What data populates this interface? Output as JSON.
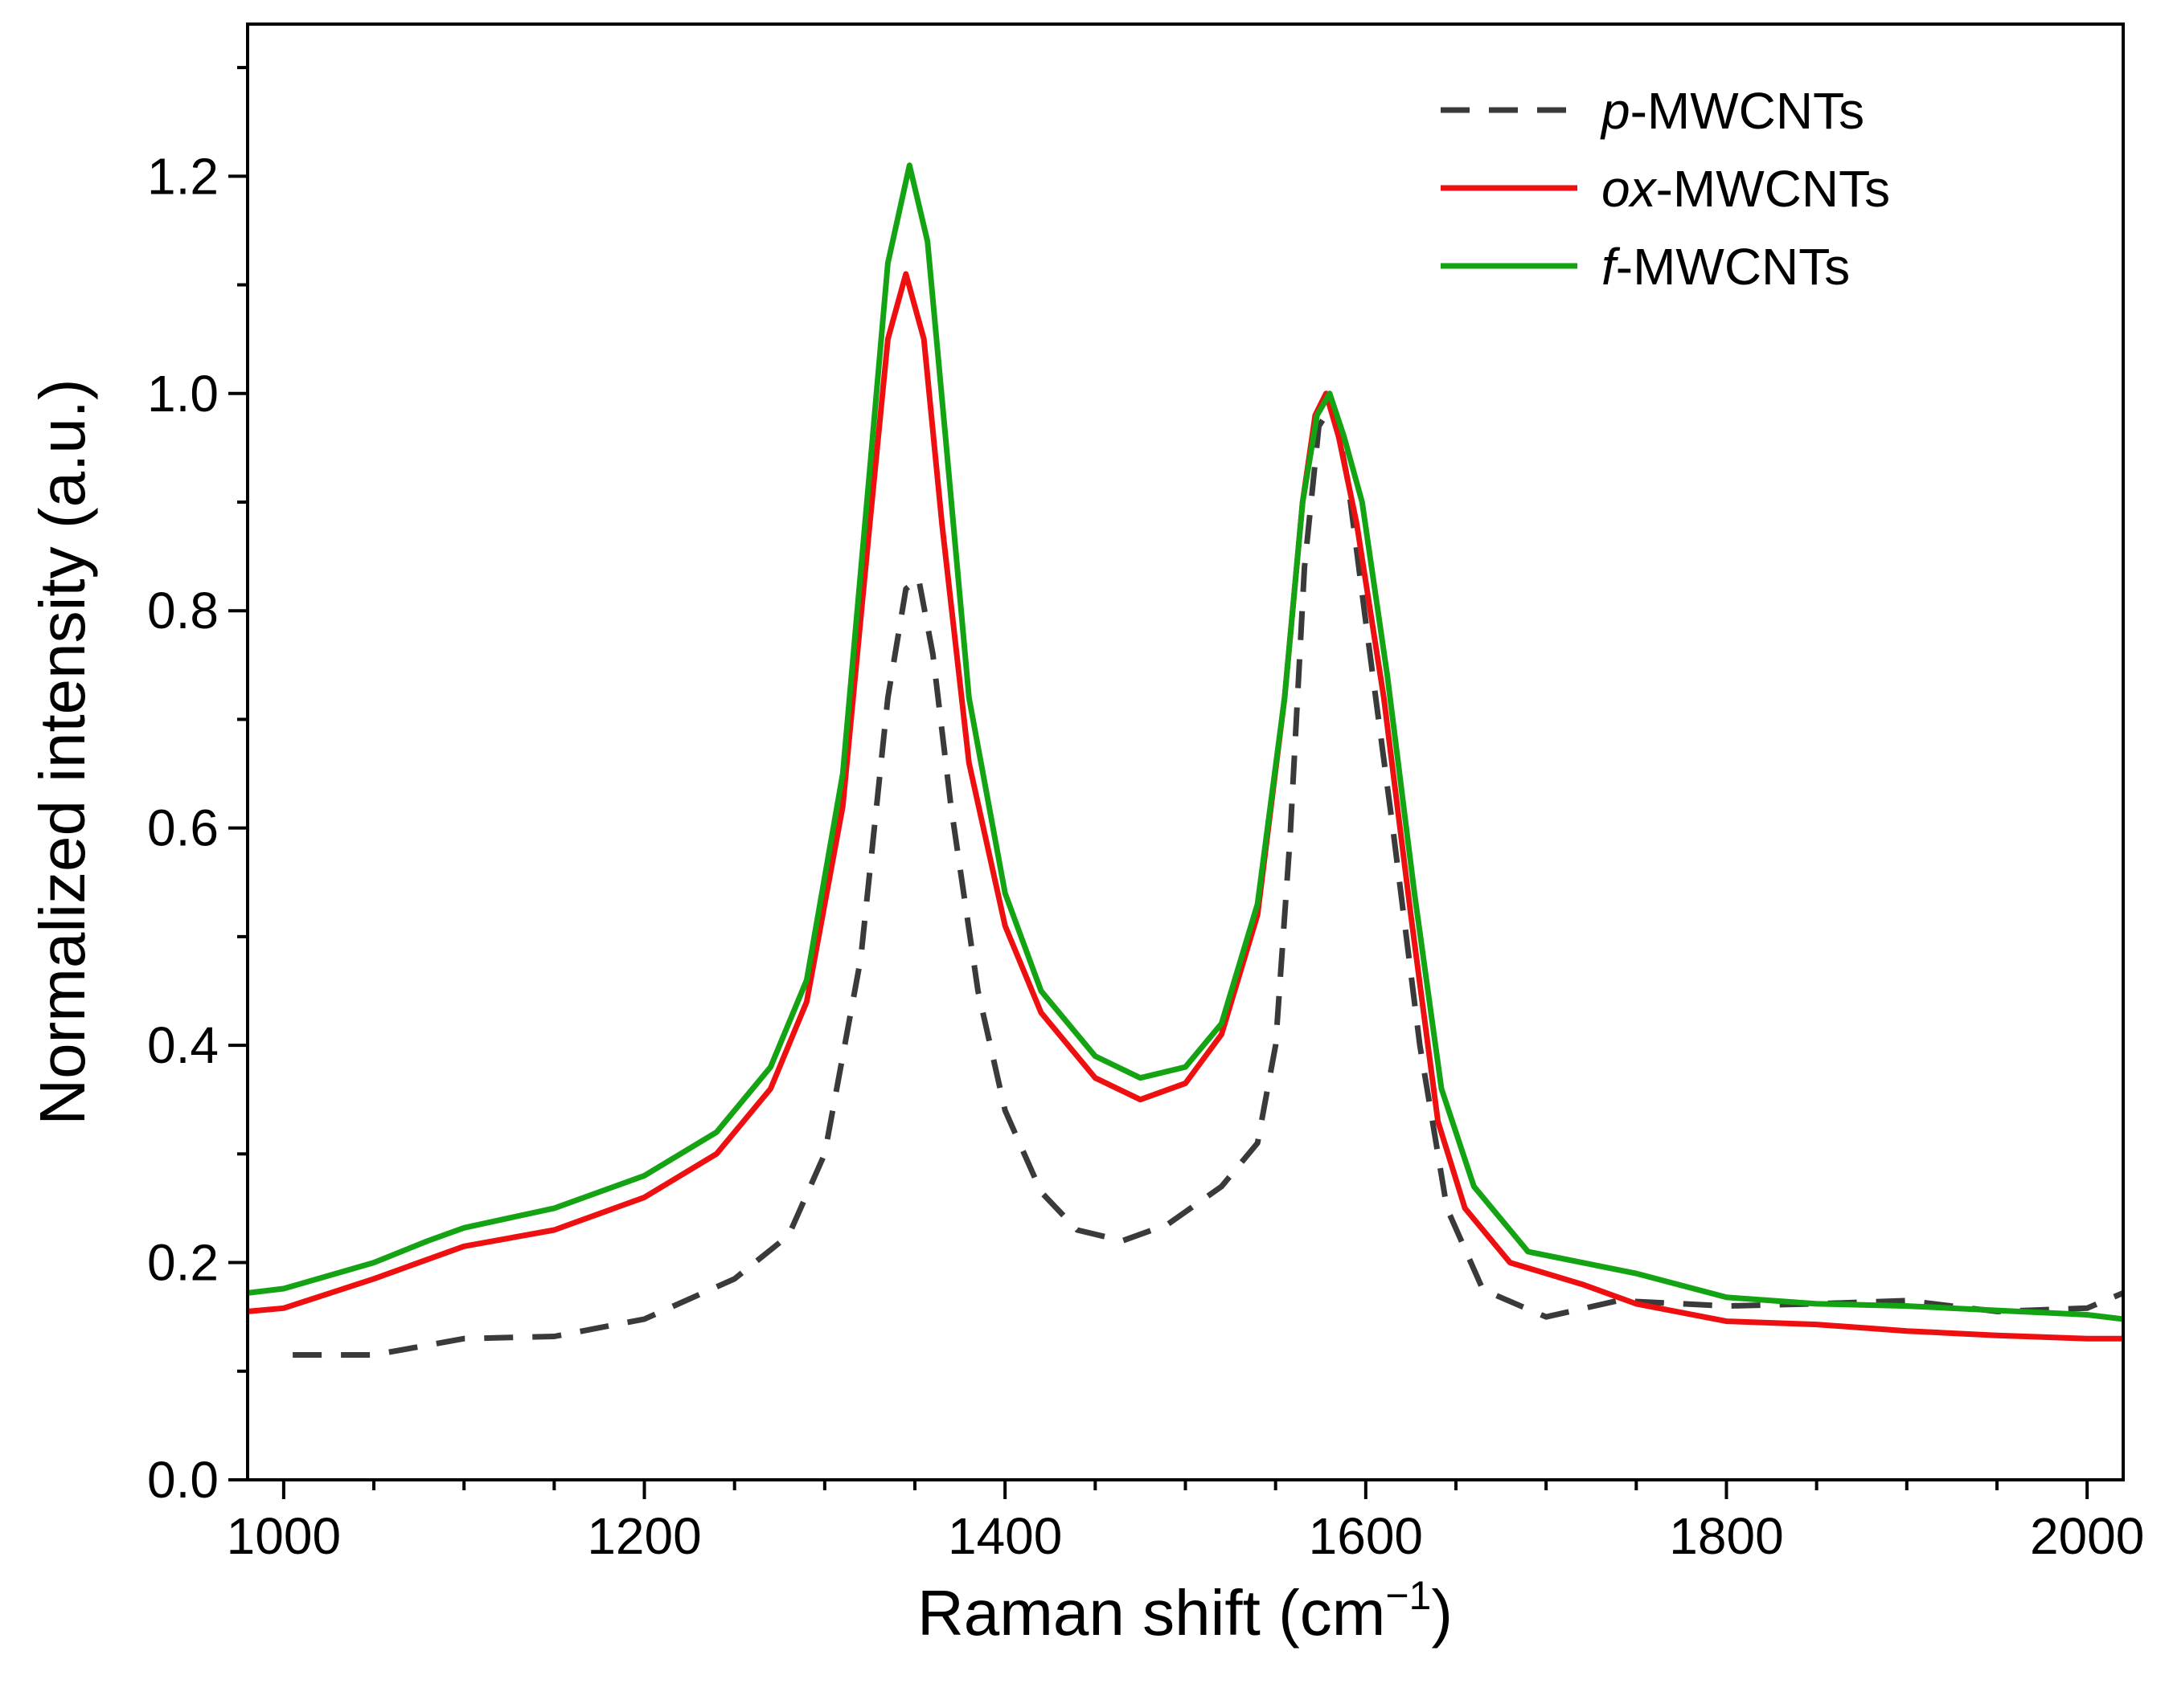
{
  "chart_data": {
    "type": "line",
    "title": "",
    "xlabel": "Raman shift (cm",
    "xlabel_sup": "−1",
    "xlabel_close": ")",
    "ylabel": "Normalized intensity (a.u.)",
    "xlim": [
      980,
      2020
    ],
    "ylim": [
      0.0,
      1.34
    ],
    "x_ticks": [
      1000,
      1200,
      1400,
      1600,
      1800,
      2000
    ],
    "x_tick_labels": [
      "1000",
      "1200",
      "1400",
      "1600",
      "1800",
      "2000"
    ],
    "x_minor_step": 50,
    "y_ticks": [
      0.0,
      0.2,
      0.4,
      0.6,
      0.8,
      1.0,
      1.2
    ],
    "y_tick_labels": [
      "0.0",
      "0.2",
      "0.4",
      "0.6",
      "0.8",
      "1.0",
      "1.2"
    ],
    "y_minor_step": 0.1,
    "grid": false,
    "legend_position": "top-right",
    "series": [
      {
        "name": "p-MWCNTs",
        "legend_italic": "p",
        "legend_rest": "-MWCNTs",
        "color": "#3a3a3a",
        "style": "dashed",
        "x": [
          1005,
          1050,
          1100,
          1150,
          1200,
          1250,
          1280,
          1300,
          1320,
          1335,
          1345,
          1352,
          1360,
          1370,
          1385,
          1400,
          1420,
          1440,
          1465,
          1490,
          1520,
          1540,
          1550,
          1558,
          1566,
          1574,
          1582,
          1590,
          1600,
          1615,
          1630,
          1645,
          1665,
          1700,
          1740,
          1800,
          1850,
          1900,
          1950,
          2000,
          2020
        ],
        "y": [
          0.115,
          0.115,
          0.13,
          0.132,
          0.148,
          0.185,
          0.225,
          0.3,
          0.48,
          0.72,
          0.82,
          0.83,
          0.76,
          0.62,
          0.45,
          0.34,
          0.265,
          0.23,
          0.22,
          0.235,
          0.27,
          0.31,
          0.4,
          0.59,
          0.84,
          0.97,
          0.99,
          0.92,
          0.79,
          0.6,
          0.4,
          0.25,
          0.175,
          0.15,
          0.165,
          0.16,
          0.162,
          0.165,
          0.155,
          0.158,
          0.172
        ]
      },
      {
        "name": "ox-MWCNTs",
        "legend_italic": "ox",
        "legend_rest": "-MWCNTs",
        "color": "#ee1010",
        "style": "solid",
        "x": [
          980,
          1000,
          1050,
          1100,
          1150,
          1200,
          1240,
          1270,
          1290,
          1310,
          1325,
          1335,
          1345,
          1355,
          1365,
          1380,
          1400,
          1420,
          1450,
          1475,
          1500,
          1520,
          1540,
          1555,
          1565,
          1572,
          1578,
          1585,
          1595,
          1610,
          1625,
          1640,
          1655,
          1680,
          1720,
          1750,
          1800,
          1850,
          1900,
          1950,
          2000,
          2020
        ],
        "y": [
          0.155,
          0.158,
          0.185,
          0.215,
          0.23,
          0.26,
          0.3,
          0.36,
          0.44,
          0.62,
          0.88,
          1.05,
          1.11,
          1.05,
          0.88,
          0.66,
          0.51,
          0.43,
          0.37,
          0.35,
          0.365,
          0.41,
          0.52,
          0.72,
          0.9,
          0.98,
          1.0,
          0.96,
          0.88,
          0.72,
          0.52,
          0.33,
          0.25,
          0.2,
          0.18,
          0.162,
          0.146,
          0.143,
          0.137,
          0.133,
          0.13,
          0.13
        ]
      },
      {
        "name": "f-MWCNTs",
        "legend_italic": "f",
        "legend_rest": "-MWCNTs",
        "color": "#13a313",
        "style": "solid",
        "x": [
          980,
          1000,
          1050,
          1080,
          1100,
          1150,
          1200,
          1240,
          1270,
          1290,
          1310,
          1325,
          1335,
          1347,
          1357,
          1367,
          1380,
          1400,
          1420,
          1450,
          1475,
          1500,
          1520,
          1540,
          1555,
          1565,
          1573,
          1580,
          1588,
          1598,
          1612,
          1627,
          1642,
          1660,
          1690,
          1720,
          1750,
          1800,
          1850,
          1900,
          1950,
          2000,
          2020
        ],
        "y": [
          0.172,
          0.176,
          0.2,
          0.22,
          0.232,
          0.25,
          0.28,
          0.32,
          0.38,
          0.46,
          0.65,
          0.93,
          1.12,
          1.21,
          1.14,
          0.96,
          0.72,
          0.54,
          0.45,
          0.39,
          0.37,
          0.38,
          0.42,
          0.53,
          0.72,
          0.9,
          0.98,
          1.0,
          0.96,
          0.9,
          0.74,
          0.54,
          0.36,
          0.27,
          0.21,
          0.2,
          0.19,
          0.168,
          0.162,
          0.16,
          0.156,
          0.152,
          0.148
        ]
      }
    ]
  }
}
